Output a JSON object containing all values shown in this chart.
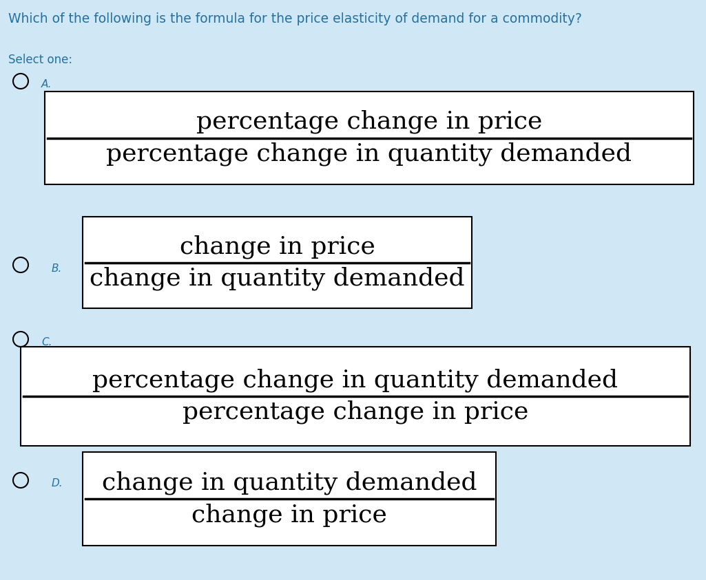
{
  "background_color": "#d0e8f5",
  "title": "Which of the following is the formula for the price elasticity of demand for a commodity?",
  "select_text": "Select one:",
  "title_color": "#2471a3",
  "select_color": "#2471a3",
  "label_color": "#2471a3",
  "box_bg": "#ffffff",
  "box_edge": "#000000",
  "text_color": "#000000",
  "options": [
    {
      "label": "A.",
      "numerator": "percentage change in price",
      "denominator": "percentage change in quantity demanded",
      "font_size": 26
    },
    {
      "label": "B.",
      "numerator": "change in price",
      "denominator": "change in quantity demanded",
      "font_size": 26
    },
    {
      "label": "C.",
      "numerator": "percentage change in quantity demanded",
      "denominator": "percentage change in price",
      "font_size": 26
    },
    {
      "label": "D.",
      "numerator": "change in quantity demanded",
      "denominator": "change in price",
      "font_size": 26
    }
  ],
  "title_fontsize": 13.5,
  "select_fontsize": 12,
  "label_fontsize": 11
}
